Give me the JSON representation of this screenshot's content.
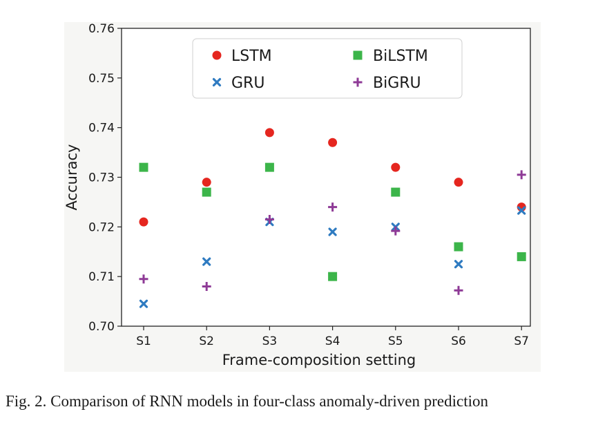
{
  "chart_data": {
    "type": "scatter",
    "xlabel": "Frame-composition setting",
    "ylabel": "Accuracy",
    "categories": [
      "S1",
      "S2",
      "S3",
      "S4",
      "S5",
      "S6",
      "S7"
    ],
    "ylim": [
      0.7,
      0.76
    ],
    "yticks": [
      "0.70",
      "0.71",
      "0.72",
      "0.73",
      "0.74",
      "0.75",
      "0.76"
    ],
    "grid": false,
    "legend_position": "top-center",
    "series": [
      {
        "name": "LSTM",
        "marker": "circle",
        "color": "#e5261f",
        "values": [
          0.721,
          0.729,
          0.739,
          0.737,
          0.732,
          0.729,
          0.724
        ]
      },
      {
        "name": "GRU",
        "marker": "x",
        "color": "#2f7bc1",
        "values": [
          0.7045,
          0.713,
          0.721,
          0.719,
          0.72,
          0.7125,
          0.7233
        ]
      },
      {
        "name": "BiLSTM",
        "marker": "square",
        "color": "#3cb54a",
        "values": [
          0.732,
          0.727,
          0.732,
          0.71,
          0.727,
          0.716,
          0.714
        ]
      },
      {
        "name": "BiGRU",
        "marker": "plus",
        "color": "#8e3a96",
        "values": [
          0.7095,
          0.708,
          0.7215,
          0.724,
          0.7192,
          0.7072,
          0.7305
        ]
      }
    ]
  },
  "caption": "Fig. 2.  Comparison of RNN models in four-class anomaly-driven prediction"
}
